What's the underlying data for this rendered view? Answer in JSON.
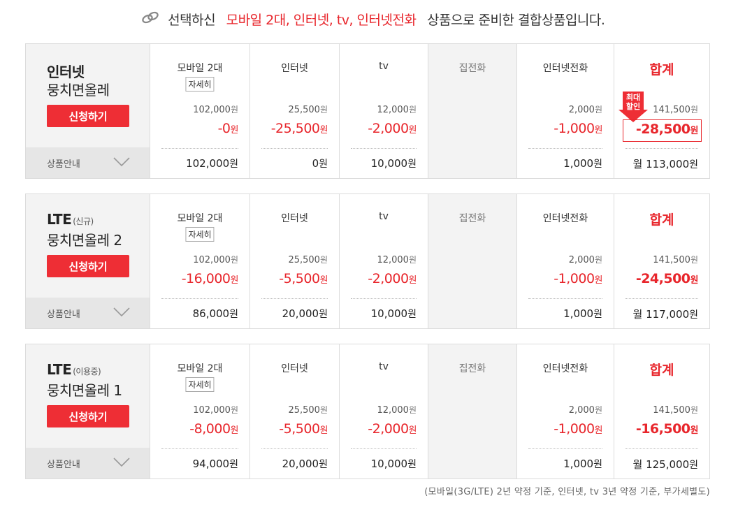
{
  "header": {
    "lead": "선택하신",
    "selected": "모바일 2대, 인터넷, tv, 인터넷전화",
    "trail": "상품으로 준비한 결합상품입니다."
  },
  "columns": {
    "mobile": "모바일 2대",
    "detail": "자세히",
    "internet": "인터넷",
    "tv": "tv",
    "phone": "집전화",
    "iphone": "인터넷전화",
    "total": "합계"
  },
  "won": "원",
  "monthly": "월",
  "apply_label": "신청하기",
  "info_label": "상품안내",
  "badge": {
    "line1": "최대",
    "line2": "할인"
  },
  "accent_color": "#ee2e35",
  "plans": [
    {
      "name1": "인터넷",
      "sub": "",
      "name2": "뭉치면올레",
      "mobile": {
        "orig": "102,000",
        "disc": "-0",
        "final": "102,000"
      },
      "internet": {
        "orig": "25,500",
        "disc": "-25,500",
        "final": "0"
      },
      "tv": {
        "orig": "12,000",
        "disc": "-2,000",
        "final": "10,000"
      },
      "iphone": {
        "orig": "2,000",
        "disc": "-1,000",
        "final": "1,000"
      },
      "total": {
        "orig": "141,500",
        "disc": "-28,500",
        "final": "113,000"
      },
      "max_discount": true
    },
    {
      "name1": "LTE",
      "sub": "(신규)",
      "name2": "뭉치면올레 2",
      "mobile": {
        "orig": "102,000",
        "disc": "-16,000",
        "final": "86,000"
      },
      "internet": {
        "orig": "25,500",
        "disc": "-5,500",
        "final": "20,000"
      },
      "tv": {
        "orig": "12,000",
        "disc": "-2,000",
        "final": "10,000"
      },
      "iphone": {
        "orig": "2,000",
        "disc": "-1,000",
        "final": "1,000"
      },
      "total": {
        "orig": "141,500",
        "disc": "-24,500",
        "final": "117,000"
      },
      "max_discount": false
    },
    {
      "name1": "LTE",
      "sub": "(이용중)",
      "name2": "뭉치면올레 1",
      "mobile": {
        "orig": "102,000",
        "disc": "-8,000",
        "final": "94,000"
      },
      "internet": {
        "orig": "25,500",
        "disc": "-5,500",
        "final": "20,000"
      },
      "tv": {
        "orig": "12,000",
        "disc": "-2,000",
        "final": "10,000"
      },
      "iphone": {
        "orig": "2,000",
        "disc": "-1,000",
        "final": "1,000"
      },
      "total": {
        "orig": "141,500",
        "disc": "-16,500",
        "final": "125,000"
      },
      "max_discount": false
    }
  ],
  "footnote": "(모바일(3G/LTE) 2년 약정 기준, 인터넷, tv 3년 약정 기준, 부가세별도)"
}
